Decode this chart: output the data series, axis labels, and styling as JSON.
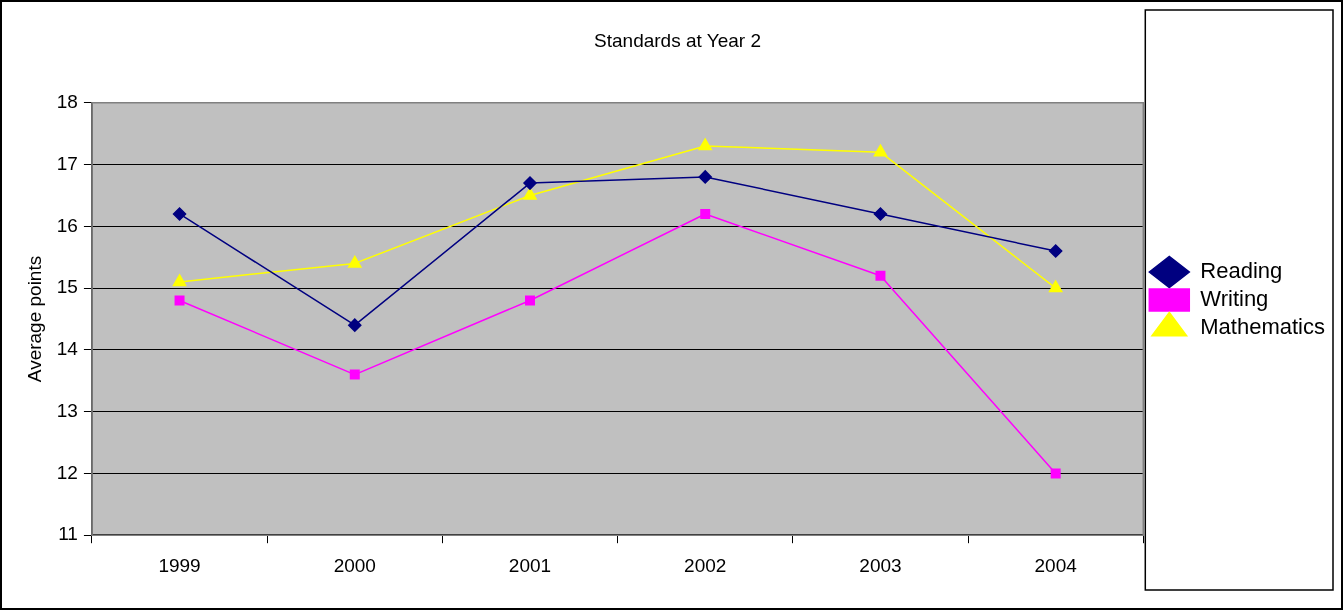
{
  "chart_data": {
    "type": "line",
    "title": "Standards at Year 2",
    "ylabel": "Average points",
    "categories": [
      "1999",
      "2000",
      "2001",
      "2002",
      "2003",
      "2004"
    ],
    "series": [
      {
        "name": "Reading",
        "color": "#000080",
        "marker": "diamond",
        "values": [
          16.2,
          14.4,
          16.7,
          16.8,
          16.2,
          15.6
        ]
      },
      {
        "name": "Writing",
        "color": "#ff00ff",
        "marker": "square",
        "values": [
          14.8,
          13.6,
          14.8,
          16.2,
          15.2,
          12.0
        ]
      },
      {
        "name": "Mathematics",
        "color": "#ffff00",
        "marker": "triangle",
        "values": [
          15.1,
          15.4,
          16.5,
          17.3,
          17.2,
          15.0
        ]
      }
    ],
    "ylim": [
      11,
      18
    ],
    "yticks": [
      11,
      12,
      13,
      14,
      15,
      16,
      17,
      18
    ],
    "grid": "y",
    "legend": "right",
    "line_style": "solid"
  }
}
